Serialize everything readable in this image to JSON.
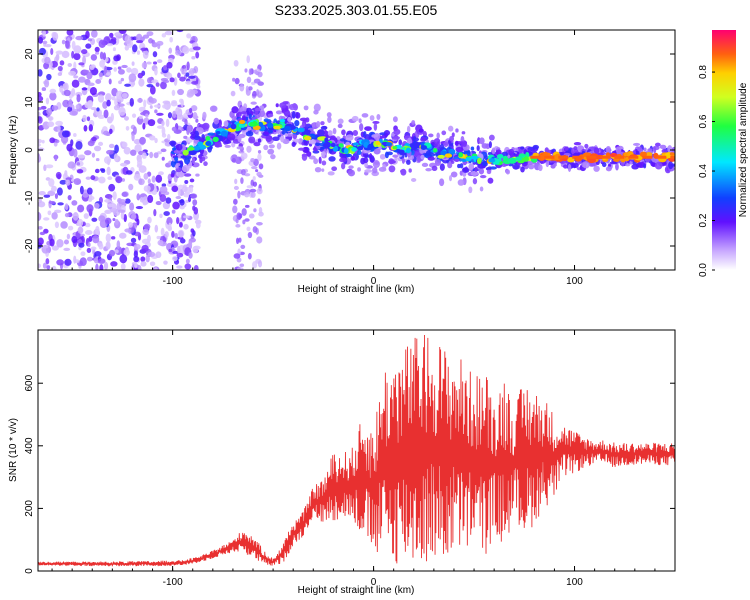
{
  "title": "S233.2025.303.01.55.E05",
  "chart_data": [
    {
      "type": "heatmap",
      "panel": "spectrogram",
      "xlabel": "Height of straight line (km)",
      "ylabel": "Frequency (Hz)",
      "xlim": [
        -167,
        150
      ],
      "ylim": [
        -25,
        25
      ],
      "x_ticks": [
        -100,
        0,
        100
      ],
      "x_tick_labels": [
        "-100",
        "0",
        "100"
      ],
      "y_ticks": [
        20,
        10,
        0,
        -10,
        -20
      ],
      "y_tick_labels": [
        "20",
        "10",
        "0",
        "-10",
        "-20"
      ],
      "ridge": {
        "name": "dominant frequency track",
        "x": [
          -95,
          -88,
          -80,
          -72,
          -66,
          -60,
          -55,
          -50,
          -45,
          -40,
          -35,
          -30,
          -25,
          -20,
          -15,
          -10,
          -5,
          0,
          5,
          10,
          15,
          20,
          25,
          30,
          35,
          40,
          45,
          50,
          55,
          60,
          65,
          70,
          75,
          80,
          90,
          100,
          110,
          120,
          130,
          140,
          150
        ],
        "y": [
          -1,
          0.5,
          2.5,
          4.5,
          5.5,
          5.5,
          5,
          5,
          5.5,
          4.5,
          3.5,
          2.5,
          2,
          1,
          0,
          0.5,
          1,
          1,
          1.5,
          0.5,
          0,
          0.5,
          0.5,
          0,
          -1,
          -1,
          -1.5,
          -1.5,
          -2,
          -2,
          -2,
          -2,
          -1.5,
          -1.5,
          -1.5,
          -1.5,
          -1.5,
          -1.5,
          -1.5,
          -1.5,
          -1.5
        ]
      },
      "colorbar": {
        "label": "Normalized spectral amplitude",
        "range": [
          0,
          0.97
        ],
        "ticks": [
          0.0,
          0.2,
          0.4,
          0.6,
          0.8
        ],
        "tick_labels": [
          "0.0",
          "0.2",
          "0.4",
          "0.6",
          "0.8"
        ]
      }
    },
    {
      "type": "line",
      "panel": "snr",
      "xlabel": "Height of straight line (km)",
      "ylabel": "SNR (10 * v/v)",
      "xlim": [
        -167,
        150
      ],
      "ylim": [
        0,
        770
      ],
      "x_ticks": [
        -100,
        0,
        100
      ],
      "x_tick_labels": [
        "-100",
        "0",
        "100"
      ],
      "y_ticks": [
        0,
        200,
        400,
        600
      ],
      "y_tick_labels": [
        "0",
        "200",
        "400",
        "600"
      ],
      "series": [
        {
          "name": "SNR",
          "color": "#e83030",
          "envelope_x": [
            -167,
            -140,
            -110,
            -95,
            -88,
            -80,
            -70,
            -65,
            -60,
            -55,
            -50,
            -45,
            -40,
            -35,
            -30,
            -25,
            -20,
            -15,
            -10,
            -5,
            0,
            5,
            10,
            15,
            20,
            25,
            30,
            35,
            40,
            45,
            50,
            55,
            60,
            65,
            70,
            75,
            80,
            85,
            90,
            95,
            100,
            105,
            110,
            115,
            120,
            125,
            130,
            135,
            140,
            145,
            150
          ],
          "envelope_low": [
            18,
            15,
            15,
            18,
            25,
            40,
            60,
            60,
            40,
            20,
            15,
            25,
            80,
            110,
            170,
            150,
            160,
            170,
            150,
            100,
            50,
            30,
            20,
            15,
            15,
            15,
            30,
            15,
            60,
            40,
            90,
            30,
            120,
            60,
            180,
            100,
            150,
            200,
            230,
            300,
            310,
            330,
            340,
            340,
            330,
            335,
            340,
            340,
            340,
            335,
            340
          ],
          "envelope_high": [
            30,
            30,
            32,
            35,
            45,
            65,
            100,
            135,
            115,
            70,
            40,
            90,
            160,
            190,
            270,
            300,
            380,
            380,
            400,
            510,
            460,
            660,
            690,
            720,
            750,
            760,
            770,
            720,
            700,
            680,
            620,
            660,
            560,
            640,
            520,
            620,
            580,
            560,
            500,
            470,
            450,
            430,
            420,
            420,
            410,
            410,
            410,
            410,
            410,
            410,
            410
          ]
        }
      ]
    }
  ]
}
